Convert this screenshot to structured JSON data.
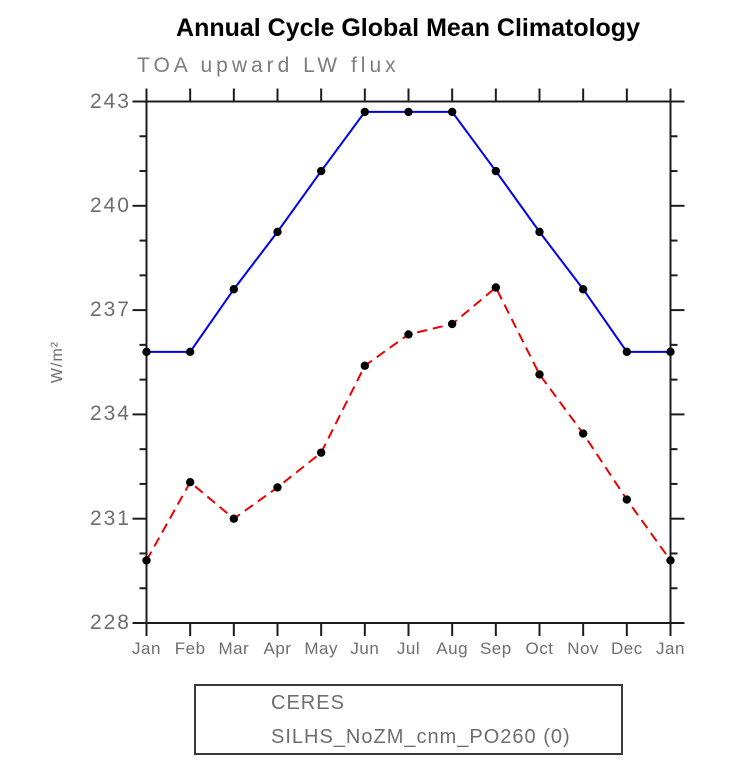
{
  "chart_data": {
    "type": "line",
    "title": "Annual Cycle Global Mean Climatology",
    "subtitle": "TOA upward LW flux",
    "ylabel": "W/m²",
    "xlabel": "",
    "categories": [
      "Jan",
      "Feb",
      "Mar",
      "Apr",
      "May",
      "Jun",
      "Jul",
      "Aug",
      "Sep",
      "Oct",
      "Nov",
      "Dec",
      "Jan"
    ],
    "series": [
      {
        "name": "CERES",
        "color": "#0000ee",
        "line_style": "solid",
        "marker": "black-dot",
        "values": [
          235.8,
          235.8,
          237.6,
          239.25,
          241.0,
          242.7,
          242.7,
          242.7,
          241.0,
          239.25,
          237.6,
          235.8,
          235.8
        ]
      },
      {
        "name": "SILHS_NoZM_cnm_PO260 (0)",
        "color": "#ee0000",
        "line_style": "dashed",
        "marker": "black-dot",
        "values": [
          229.8,
          232.05,
          231.0,
          231.9,
          232.9,
          235.4,
          236.3,
          236.6,
          237.65,
          235.15,
          233.45,
          231.55,
          229.8
        ]
      }
    ],
    "ylim": [
      228,
      243
    ],
    "yticks": [
      243,
      240,
      237,
      234,
      231,
      228
    ],
    "ytick_labels": [
      "243",
      "240",
      "237",
      "234",
      "231",
      "228"
    ],
    "minor_tick_step": 1,
    "grid": false,
    "legend_position": "bottom-box"
  },
  "colors": {
    "axis": "#1c1c1c",
    "tick_label": "#6e6e6e",
    "subtitle": "#7d7d7d",
    "title": "#000000",
    "marker": "#000000"
  }
}
